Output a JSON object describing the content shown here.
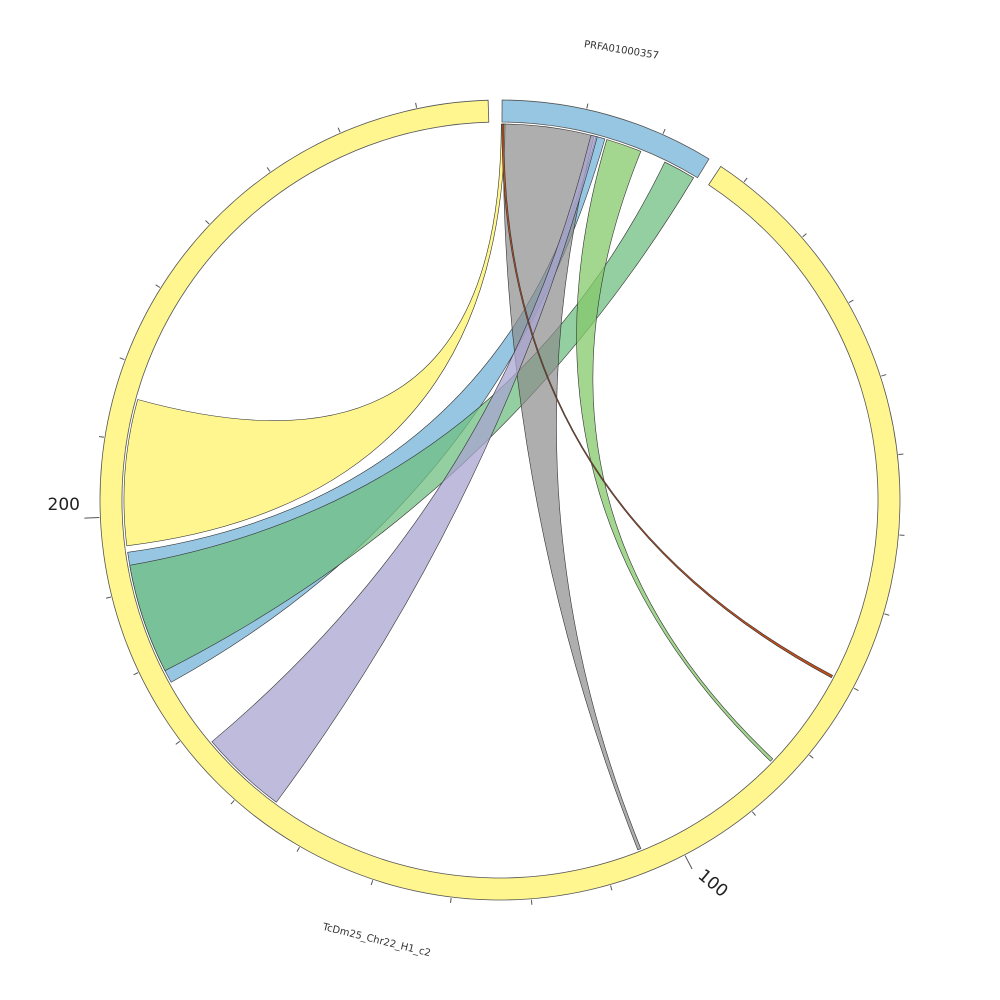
{
  "chart_data": {
    "type": "chord",
    "segments": [
      {
        "name": "PRFA01000357",
        "color": "#96c6e1"
      },
      {
        "name": "TcDm25_Chr22_H1_c2",
        "color": "#fff68f"
      }
    ],
    "tick_labels": [
      {
        "segment": "TcDm25_Chr22_H1_c2",
        "value": "100"
      },
      {
        "segment": "TcDm25_Chr22_H1_c2",
        "value": "200"
      }
    ],
    "links": [
      {
        "color": "#fff68f",
        "opacity": 1.0
      },
      {
        "color": "#96c6e1",
        "opacity": 1.0
      },
      {
        "color": "#6fbf80",
        "opacity": 0.75
      },
      {
        "color": "#8c8c8c",
        "opacity": 0.7
      },
      {
        "color": "#84c86a",
        "opacity": 0.75
      },
      {
        "color": "#a8a4d0",
        "opacity": 0.75
      },
      {
        "color": "#c0501e",
        "opacity": 1.0
      }
    ]
  }
}
